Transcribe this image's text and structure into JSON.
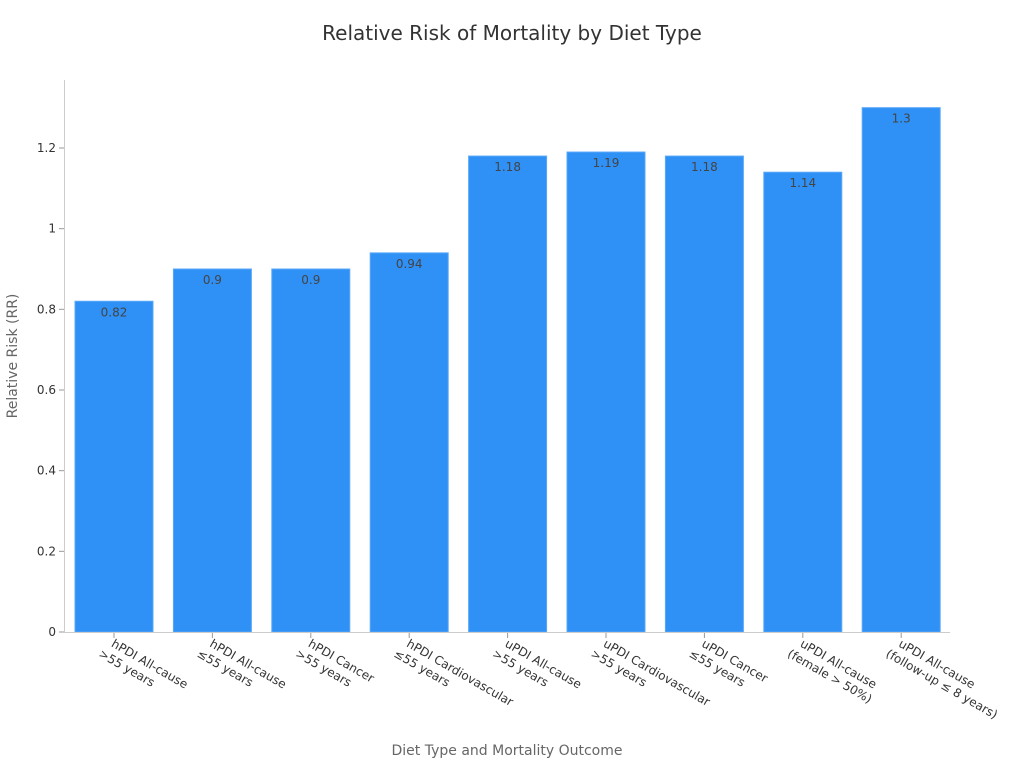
{
  "chart_data": {
    "type": "bar",
    "title": "Relative Risk of Mortality by Diet Type",
    "xlabel": "Diet Type and Mortality Outcome",
    "ylabel": "Relative Risk (RR)",
    "ylim": [
      0,
      1.37
    ],
    "yticks": [
      0,
      0.2,
      0.4,
      0.6,
      0.8,
      1,
      1.2
    ],
    "ytick_labels": [
      "0",
      "0.2",
      "0.4",
      "0.6",
      "0.8",
      "1",
      "1.2"
    ],
    "grid": false,
    "legend": null,
    "categories": [
      "hPDI All-cause >55 years",
      "hPDI All-cause ≤55 years",
      "hPDI Cancer >55 years",
      "hPDI Cardiovascular ≤55 years",
      "uPDI All-cause >55 years",
      "uPDI Cardiovascular >55 years",
      "uPDI Cancer ≤55 years",
      "uPDI All-cause (female > 50%)",
      "uPDI All-cause (follow-up ≤ 8 years)"
    ],
    "category_lines": [
      [
        "hPDI All-cause",
        ">55 years"
      ],
      [
        "hPDI All-cause",
        "≤55 years"
      ],
      [
        "hPDI Cancer",
        ">55 years"
      ],
      [
        "hPDI Cardiovascular",
        "≤55 years"
      ],
      [
        "uPDI All-cause",
        ">55 years"
      ],
      [
        "uPDI Cardiovascular",
        ">55 years"
      ],
      [
        "uPDI Cancer",
        "≤55 years"
      ],
      [
        "uPDI All-cause",
        "(female > 50%)"
      ],
      [
        "uPDI All-cause",
        "(follow-up ≤ 8 years)"
      ]
    ],
    "values": [
      0.82,
      0.9,
      0.9,
      0.94,
      1.18,
      1.19,
      1.18,
      1.14,
      1.3
    ],
    "value_labels": [
      "0.82",
      "0.9",
      "0.9",
      "0.94",
      "1.18",
      "1.19",
      "1.18",
      "1.14",
      "1.3"
    ],
    "colors": {
      "bar": "#2f91f6",
      "bar_edge": "#5aa8f8",
      "axis": "#cccccc"
    }
  }
}
